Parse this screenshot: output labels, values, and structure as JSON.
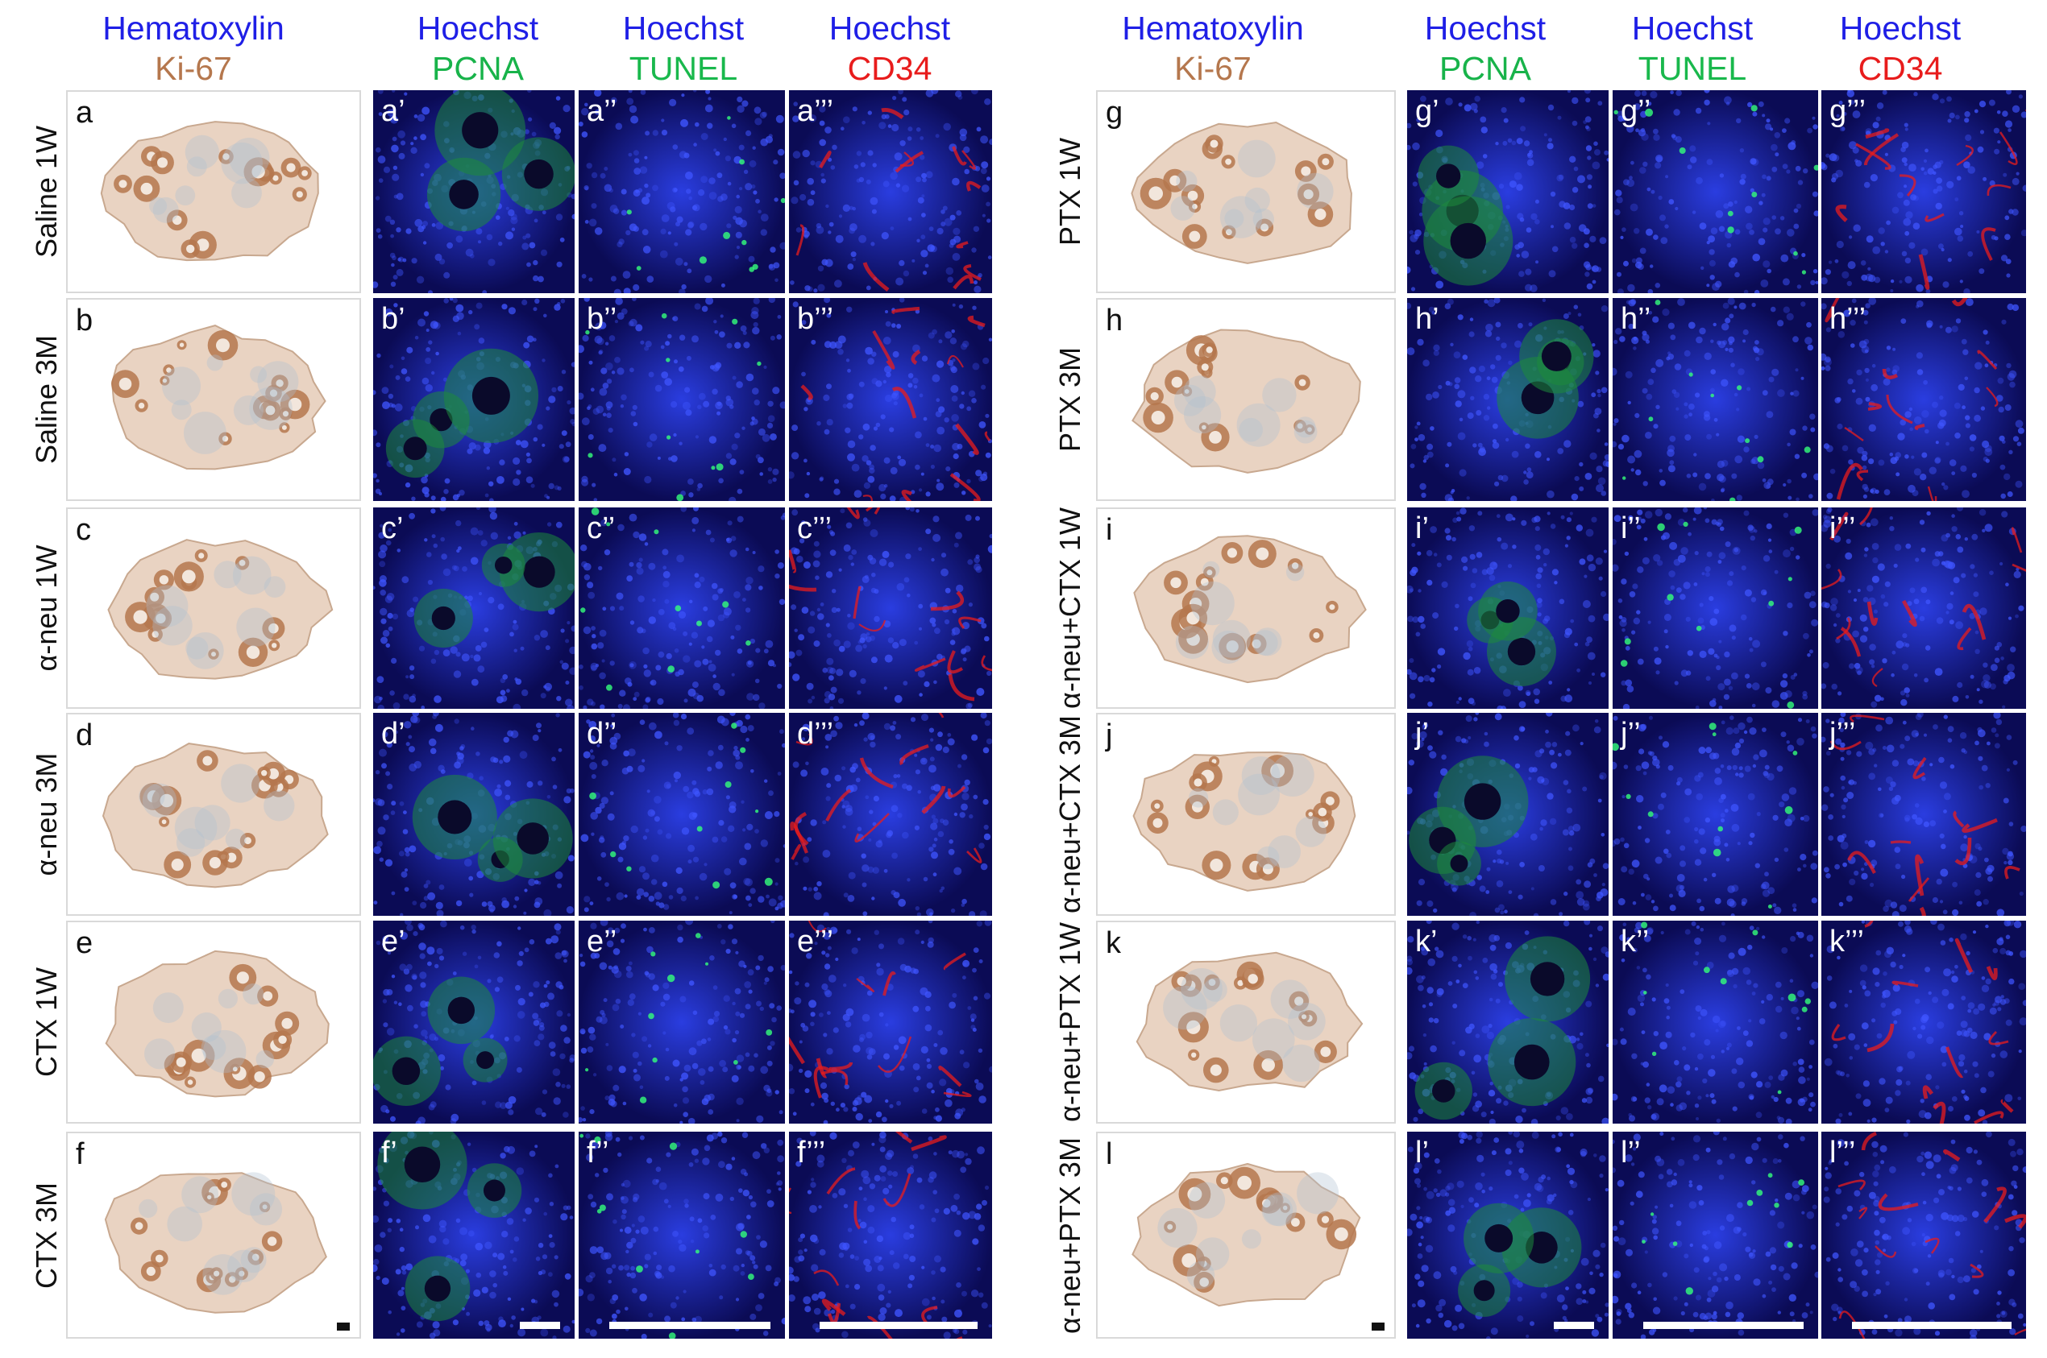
{
  "colors": {
    "hoechst_blue": "#1f1fe6",
    "ki67_brown": "#b5774d",
    "pcna_green": "#18b34a",
    "tunel_green": "#19b84c",
    "cd34_red": "#e81c1c"
  },
  "headers": {
    "hematoxylin": "Hematoxylin",
    "ki67": "Ki-67",
    "hoechst": "Hoechst",
    "pcna": "PCNA",
    "tunel": "TUNEL",
    "cd34": "CD34"
  },
  "left": {
    "rows": [
      {
        "label": "Saline 1W",
        "p": [
          "a",
          "a’",
          "a’’",
          "a’’’"
        ]
      },
      {
        "label": "Saline 3M",
        "p": [
          "b",
          "b’",
          "b’’",
          "b’’’"
        ]
      },
      {
        "label": "α-neu 1W",
        "p": [
          "c",
          "c’",
          "c’’",
          "c’’’"
        ]
      },
      {
        "label": "α-neu 3M",
        "p": [
          "d",
          "d’",
          "d’’",
          "d’’’"
        ]
      },
      {
        "label": "CTX 1W",
        "p": [
          "e",
          "e’",
          "e’’",
          "e’’’"
        ]
      },
      {
        "label": "CTX 3M",
        "p": [
          "f",
          "f’",
          "f’’",
          "f’’’"
        ]
      }
    ]
  },
  "right": {
    "rows": [
      {
        "label": "PTX 1W",
        "p": [
          "g",
          "g’",
          "g’’",
          "g’’’"
        ]
      },
      {
        "label": "PTX 3M",
        "p": [
          "h",
          "h’",
          "h’’",
          "h’’’"
        ]
      },
      {
        "label": "α-neu+CTX 1W",
        "p": [
          "i",
          "i’",
          "i’’",
          "i’’’"
        ]
      },
      {
        "label": "α-neu+CTX 3M",
        "p": [
          "j",
          "j’",
          "j’’",
          "j’’’"
        ]
      },
      {
        "label": "α-neu+PTX 1W",
        "p": [
          "k",
          "k’",
          "k’’",
          "k’’’"
        ]
      },
      {
        "label": "α-neu+PTX 3M",
        "p": [
          "l",
          "l’",
          "l’’",
          "l’’’"
        ]
      }
    ]
  }
}
